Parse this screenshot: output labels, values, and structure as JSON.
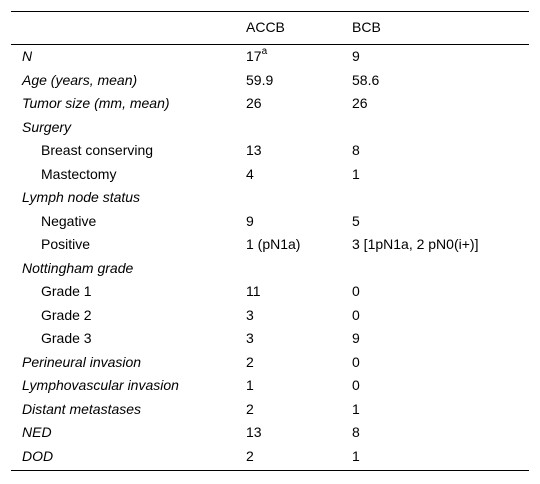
{
  "header": {
    "col1": "ACCB",
    "col2": "BCB"
  },
  "rows": [
    {
      "label": "N",
      "italic": true,
      "indent": false,
      "v1": "17",
      "v1_sup": "a",
      "v2": "9"
    },
    {
      "label": "Age (years, mean)",
      "italic": true,
      "indent": false,
      "v1": "59.9",
      "v2": "58.6"
    },
    {
      "label": "Tumor size (mm, mean)",
      "italic": true,
      "indent": false,
      "v1": "26",
      "v2": "26"
    },
    {
      "label": "Surgery",
      "italic": true,
      "indent": false,
      "v1": "",
      "v2": ""
    },
    {
      "label": "Breast conserving",
      "italic": false,
      "indent": true,
      "v1": "13",
      "v2": "8"
    },
    {
      "label": "Mastectomy",
      "italic": false,
      "indent": true,
      "v1": "4",
      "v2": "1"
    },
    {
      "label": "Lymph node status",
      "italic": true,
      "indent": false,
      "v1": "",
      "v2": ""
    },
    {
      "label": "Negative",
      "italic": false,
      "indent": true,
      "v1": "9",
      "v2": "5"
    },
    {
      "label": "Positive",
      "italic": false,
      "indent": true,
      "v1": "1 (pN1a)",
      "v2": "3 [1pN1a, 2 pN0(i+)]"
    },
    {
      "label": "Nottingham grade",
      "italic": true,
      "indent": false,
      "v1": "",
      "v2": ""
    },
    {
      "label": "Grade 1",
      "italic": false,
      "indent": true,
      "v1": "11",
      "v2": "0"
    },
    {
      "label": "Grade 2",
      "italic": false,
      "indent": true,
      "v1": "3",
      "v2": "0"
    },
    {
      "label": "Grade 3",
      "italic": false,
      "indent": true,
      "v1": "3",
      "v2": "9"
    },
    {
      "label": "Perineural invasion",
      "italic": true,
      "indent": false,
      "v1": "2",
      "v2": "0"
    },
    {
      "label": "Lymphovascular invasion",
      "italic": true,
      "indent": false,
      "v1": "1",
      "v2": "0"
    },
    {
      "label": "Distant metastases",
      "italic": true,
      "indent": false,
      "v1": "2",
      "v2": "1"
    },
    {
      "label": "NED",
      "italic": true,
      "indent": false,
      "v1": "13",
      "v2": "8"
    },
    {
      "label": "DOD",
      "italic": true,
      "indent": false,
      "v1": "2",
      "v2": "1"
    }
  ]
}
